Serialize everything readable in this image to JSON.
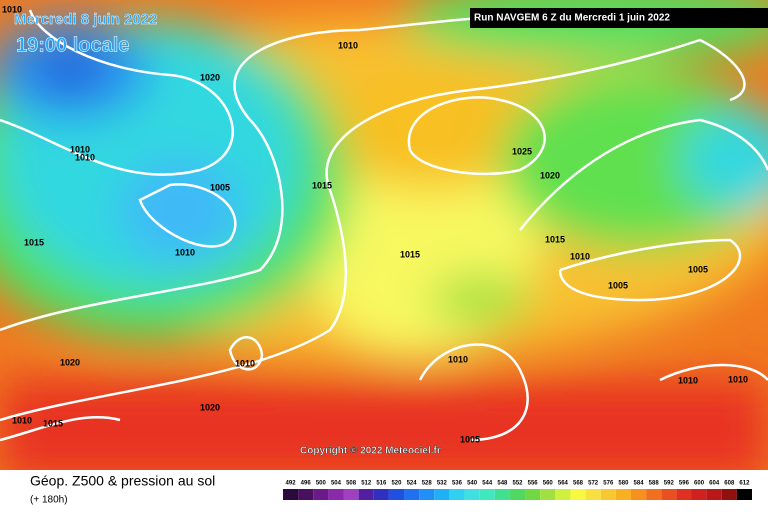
{
  "header": {
    "date": "Mercredi 8 juin 2022",
    "time": "19:00 locale",
    "run": "Run NAVGEM 6 Z du Mercredi 1 juin 2022"
  },
  "copyright": "Copyright © 2022 Meteociel.fr",
  "footer": {
    "title": "Géop. Z500 & pression au sol",
    "lead": "(+ 180h)"
  },
  "isobar_labels": [
    1010,
    1010,
    1020,
    1010,
    1010,
    1005,
    1015,
    1025,
    1020,
    1015,
    1010,
    1015,
    1015,
    1010,
    1005,
    1005,
    1020,
    1010,
    1010,
    1020,
    1010,
    1015,
    1005,
    1010,
    1010
  ],
  "scale": {
    "labels": [
      492,
      496,
      500,
      504,
      508,
      512,
      516,
      520,
      524,
      528,
      532,
      536,
      540,
      544,
      548,
      552,
      556,
      560,
      564,
      568,
      572,
      576,
      580,
      584,
      588,
      592,
      596,
      600,
      604,
      608,
      612
    ],
    "colors": [
      "#2a0a3a",
      "#4a1060",
      "#6a1a8a",
      "#8a2aaa",
      "#a040c0",
      "#5020a0",
      "#3030c0",
      "#2050e0",
      "#2070f0",
      "#2090f8",
      "#20b0f8",
      "#30d0f0",
      "#40e0e0",
      "#40e8c0",
      "#40e090",
      "#50d860",
      "#70d840",
      "#a0e040",
      "#d0f040",
      "#f8f840",
      "#f8e040",
      "#f8c830",
      "#f8b020",
      "#f89020",
      "#f07020",
      "#e85020",
      "#e03020",
      "#d02020",
      "#b81818",
      "#901010",
      "#000000"
    ]
  }
}
